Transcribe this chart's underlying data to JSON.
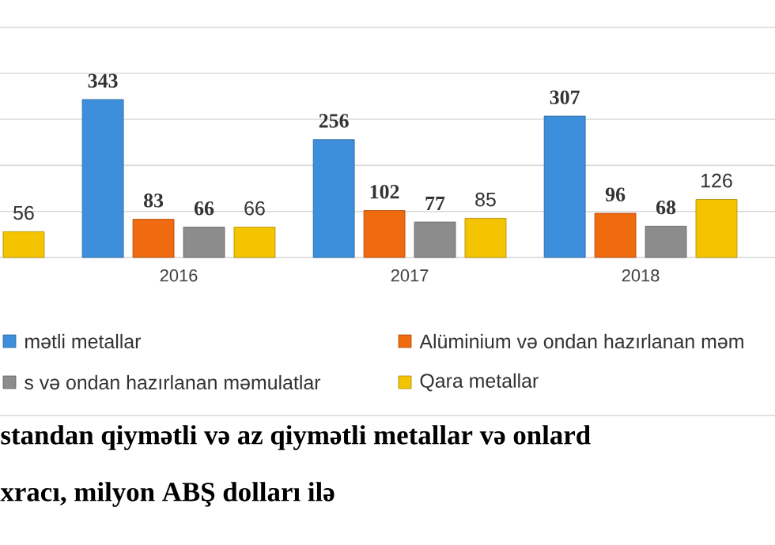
{
  "chart_data": {
    "type": "bar",
    "categories": [
      null,
      "2016",
      "2017",
      "2018"
    ],
    "series": [
      {
        "name": "mətli metallar",
        "color": "#3d8fdc",
        "values": [
          null,
          343,
          256,
          307
        ]
      },
      {
        "name": "Alüminium və ondan hazırlanan məm",
        "color": "#f06a10",
        "values": [
          null,
          83,
          102,
          96
        ]
      },
      {
        "name": "s və ondan hazırlanan məmulatlar",
        "color": "#8c8c8c",
        "values": [
          null,
          66,
          77,
          68
        ]
      },
      {
        "name": "Qara metallar",
        "color": "#f5c400",
        "values": [
          56,
          66,
          85,
          126
        ]
      }
    ],
    "tick_labels": "x",
    "grid": "y",
    "legend": "bottom",
    "data_labels": true,
    "annotations": [
      "standan qiymətli və az qiymətli metallar və onlard",
      "xracı, milyon ABŞ dolları ilə"
    ]
  }
}
